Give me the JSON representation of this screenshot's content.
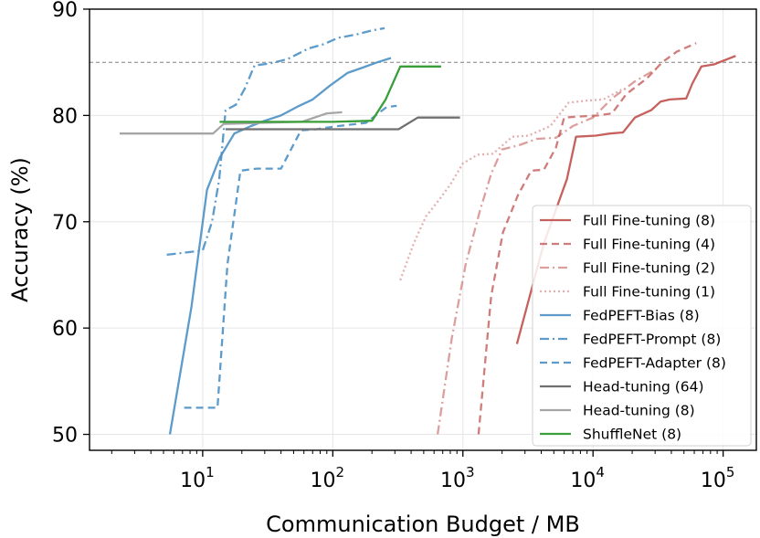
{
  "chart_data": {
    "type": "line",
    "title": "",
    "xlabel": "Communication Budget / MB",
    "ylabel": "Accuracy (%)",
    "xscale": "log",
    "xlim": [
      1.35,
      180000
    ],
    "ylim": [
      48.5,
      90
    ],
    "grid": true,
    "legend_position": "lower-right",
    "x_ticks": [
      {
        "value": 10,
        "base": "10",
        "exp": "1"
      },
      {
        "value": 100,
        "base": "10",
        "exp": "2"
      },
      {
        "value": 1000,
        "base": "10",
        "exp": "3"
      },
      {
        "value": 10000,
        "base": "10",
        "exp": "4"
      },
      {
        "value": 100000,
        "base": "10",
        "exp": "5"
      }
    ],
    "y_ticks": [
      {
        "value": 50,
        "label": "50"
      },
      {
        "value": 60,
        "label": "60"
      },
      {
        "value": 70,
        "label": "70"
      },
      {
        "value": 80,
        "label": "80"
      },
      {
        "value": 90,
        "label": "90"
      }
    ],
    "reference_line": {
      "y": 85,
      "color": "#808080",
      "style": "dashed"
    },
    "series": [
      {
        "name": "Full Fine-tuning (8)",
        "color": "#c0504d",
        "alpha": 0.9,
        "dash": "solid",
        "step": true,
        "x": [
          2600,
          4200,
          6300,
          7400,
          10500,
          13500,
          17000,
          21000,
          28000,
          33000,
          39000,
          52000,
          58000,
          68000,
          85000,
          125000
        ],
        "y": [
          58.5,
          68.0,
          74.0,
          78.0,
          78.1,
          78.3,
          78.4,
          79.8,
          80.5,
          81.3,
          81.5,
          81.6,
          83.0,
          84.6,
          84.8,
          85.6
        ]
      },
      {
        "name": "Full Fine-tuning (4)",
        "color": "#c0504d",
        "alpha": 0.75,
        "dash": "8,5",
        "step": true,
        "x": [
          1320,
          1650,
          2030,
          2650,
          3350,
          4200,
          5200,
          6000,
          8000,
          11000,
          14000,
          18000,
          26000,
          34000,
          44000,
          62000
        ],
        "y": [
          50.0,
          63.0,
          69.0,
          72.5,
          74.8,
          74.9,
          77.0,
          79.8,
          79.9,
          80.0,
          80.2,
          82.0,
          83.5,
          85.0,
          86.0,
          86.8
        ]
      },
      {
        "name": "Full Fine-tuning (2)",
        "color": "#c0504d",
        "alpha": 0.55,
        "dash": "10,4,2,4",
        "step": true,
        "x": [
          640,
          820,
          1050,
          1350,
          1650,
          2000,
          2700,
          3700,
          5200,
          7000,
          10000,
          14000,
          21000,
          32000
        ],
        "y": [
          50.0,
          59.0,
          66.0,
          71.0,
          74.5,
          76.8,
          77.2,
          77.8,
          77.9,
          79.0,
          79.8,
          81.6,
          83.2,
          84.5
        ]
      },
      {
        "name": "Full Fine-tuning (1)",
        "color": "#c0504d",
        "alpha": 0.45,
        "dash": "2,3",
        "step": true,
        "x": [
          330,
          420,
          520,
          650,
          800,
          1000,
          1300,
          1700,
          2400,
          3200,
          4700,
          6500,
          9000,
          12000,
          17000
        ],
        "y": [
          64.5,
          68.0,
          70.5,
          72.0,
          73.5,
          75.5,
          76.3,
          76.4,
          78.0,
          78.1,
          79.0,
          81.2,
          81.4,
          81.5,
          82.5
        ]
      },
      {
        "name": "FedPEFT-Bias (8)",
        "color": "#4a90c4",
        "alpha": 0.9,
        "dash": "solid",
        "step": true,
        "x": [
          5.6,
          8.2,
          10.8,
          13.5,
          17.5,
          23.5,
          30.0,
          40.0,
          53.0,
          70.0,
          95.0,
          130.0,
          170.0,
          220.0,
          280.0
        ],
        "y": [
          50.0,
          62.0,
          73.0,
          76.0,
          78.3,
          79.0,
          79.5,
          80.0,
          80.8,
          81.5,
          82.8,
          84.0,
          84.5,
          85.0,
          85.4
        ]
      },
      {
        "name": "FedPEFT-Prompt (8)",
        "color": "#4a90c4",
        "alpha": 0.9,
        "dash": "10,4,2,4",
        "step": true,
        "x": [
          5.3,
          10.0,
          11.8,
          13.4,
          15.0,
          18.0,
          21.0,
          25.0,
          33.0,
          45.0,
          65.0,
          85.0,
          110.0,
          150.0,
          200.0,
          250.0
        ],
        "y": [
          66.9,
          67.3,
          70.0,
          74.0,
          80.5,
          81.0,
          82.5,
          84.7,
          84.9,
          85.3,
          86.3,
          86.7,
          87.3,
          87.6,
          88.0,
          88.2
        ]
      },
      {
        "name": "FedPEFT-Adapter (8)",
        "color": "#4a90c4",
        "alpha": 0.9,
        "dash": "8,5",
        "step": true,
        "x": [
          7.2,
          13.0,
          15.5,
          19.5,
          26.0,
          40.0,
          57.0,
          75.0,
          110.0,
          180.0,
          260.0,
          310.0
        ],
        "y": [
          52.5,
          52.5,
          66.0,
          74.8,
          75.0,
          75.0,
          78.6,
          78.7,
          79.0,
          79.3,
          80.8,
          80.9
        ]
      },
      {
        "name": "Head-tuning (64)",
        "color": "#707070",
        "alpha": 1.0,
        "dash": "solid",
        "step": true,
        "x": [
          15.0,
          40.0,
          80.0,
          160.0,
          320.0,
          450.0,
          950.0
        ],
        "y": [
          78.7,
          78.7,
          78.7,
          78.7,
          78.7,
          79.8,
          79.8
        ]
      },
      {
        "name": "Head-tuning (8)",
        "color": "#a6a6a6",
        "alpha": 1.0,
        "dash": "solid",
        "step": true,
        "x": [
          2.3,
          12.0,
          14.5,
          28.0,
          58.0,
          90.0,
          118.0
        ],
        "y": [
          78.3,
          78.3,
          79.2,
          79.3,
          79.4,
          80.2,
          80.3
        ]
      },
      {
        "name": "ShuffleNet (8)",
        "color": "#3a9e3a",
        "alpha": 1.0,
        "dash": "solid",
        "step": true,
        "x": [
          13.5,
          100.0,
          200.0,
          255.0,
          330.0,
          680.0
        ],
        "y": [
          79.4,
          79.4,
          79.5,
          81.5,
          84.6,
          84.6
        ]
      }
    ]
  }
}
